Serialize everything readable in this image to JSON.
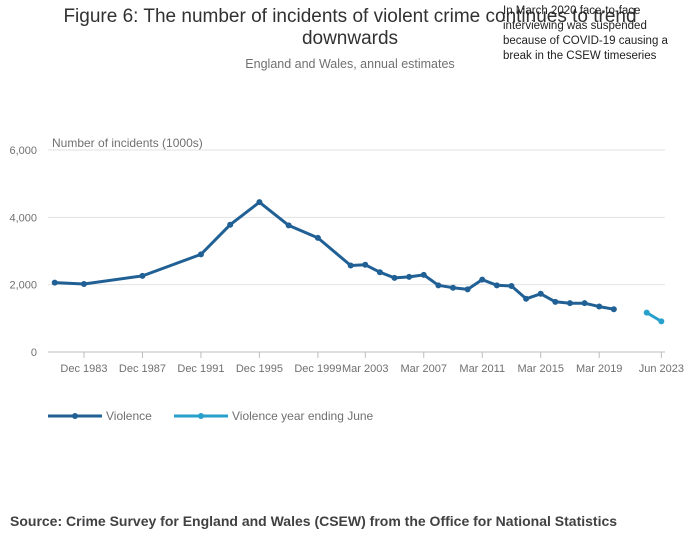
{
  "chart_data": {
    "type": "line",
    "title": "Figure 6: The number of incidents of violent crime continues to trend downwards",
    "title_lines": [
      "Figure 6: The number of incidents of violent crime continues to trend",
      "downwards"
    ],
    "subtitle": "England and Wales, annual estimates",
    "ylabel": "Number of incidents (1000s)",
    "ylim": [
      0,
      6000
    ],
    "y_ticks": [
      0,
      2000,
      4000,
      6000
    ],
    "y_tick_labels": [
      "0",
      "2,000",
      "4,000",
      "6,000"
    ],
    "x_tick_labels": [
      {
        "label": "Dec 1983",
        "x": 1983.96
      },
      {
        "label": "Dec 1987",
        "x": 1987.96
      },
      {
        "label": "Dec 1991",
        "x": 1991.96
      },
      {
        "label": "Dec 1995",
        "x": 1995.96
      },
      {
        "label": "Dec 1999",
        "x": 1999.96
      },
      {
        "label": "Mar 2003",
        "x": 2003.2
      },
      {
        "label": "Mar 2007",
        "x": 2007.2
      },
      {
        "label": "Mar 2011",
        "x": 2011.2
      },
      {
        "label": "Mar 2015",
        "x": 2015.2
      },
      {
        "label": "Mar 2019",
        "x": 2019.2
      },
      {
        "label": "Jun 2023",
        "x": 2023.45
      }
    ],
    "xlim": [
      1981.5,
      2023.7
    ],
    "series": [
      {
        "name": "Violence",
        "color": "#206095",
        "points": [
          {
            "x": 1981.96,
            "y": 2060
          },
          {
            "x": 1983.96,
            "y": 2020
          },
          {
            "x": 1987.96,
            "y": 2260
          },
          {
            "x": 1991.96,
            "y": 2900
          },
          {
            "x": 1993.96,
            "y": 3780
          },
          {
            "x": 1995.96,
            "y": 4450
          },
          {
            "x": 1997.96,
            "y": 3760
          },
          {
            "x": 1999.96,
            "y": 3390
          },
          {
            "x": 2002.2,
            "y": 2570
          },
          {
            "x": 2003.2,
            "y": 2590
          },
          {
            "x": 2004.2,
            "y": 2370
          },
          {
            "x": 2005.2,
            "y": 2200
          },
          {
            "x": 2006.2,
            "y": 2230
          },
          {
            "x": 2007.2,
            "y": 2290
          },
          {
            "x": 2008.2,
            "y": 1980
          },
          {
            "x": 2009.2,
            "y": 1910
          },
          {
            "x": 2010.2,
            "y": 1860
          },
          {
            "x": 2011.2,
            "y": 2150
          },
          {
            "x": 2012.2,
            "y": 1980
          },
          {
            "x": 2013.2,
            "y": 1960
          },
          {
            "x": 2014.2,
            "y": 1580
          },
          {
            "x": 2015.2,
            "y": 1730
          },
          {
            "x": 2016.2,
            "y": 1490
          },
          {
            "x": 2017.2,
            "y": 1450
          },
          {
            "x": 2018.2,
            "y": 1450
          },
          {
            "x": 2019.2,
            "y": 1350
          },
          {
            "x": 2020.2,
            "y": 1270
          }
        ]
      },
      {
        "name": "Violence year ending June",
        "color": "#27a0cc",
        "points": [
          {
            "x": 2022.45,
            "y": 1170
          },
          {
            "x": 2023.45,
            "y": 910
          }
        ]
      }
    ],
    "annotation": "In March 2020 face-to-face interviewing was suspended because of COVID-19 causing a break in the CSEW timeseries",
    "legend_position": "bottom-left",
    "source": "Source: Crime Survey for England and Wales (CSEW) from the Office for National Statistics"
  }
}
